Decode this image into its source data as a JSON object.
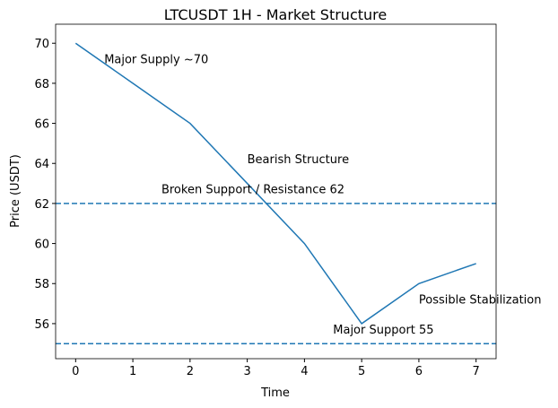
{
  "chart_data": {
    "type": "line",
    "title": "LTCUSDT 1H - Market Structure",
    "x_label": "Time",
    "y_label": "Price (USDT)",
    "x": [
      0,
      1,
      2,
      3,
      4,
      5,
      6,
      7
    ],
    "series": [
      {
        "color": "#1f77b4",
        "values": [
          70,
          68,
          66,
          63,
          60,
          56,
          58,
          59
        ]
      }
    ],
    "hlines": [
      {
        "value": 62,
        "color": "#1f77b4",
        "style": "dashed"
      },
      {
        "value": 55,
        "color": "#1f77b4",
        "style": "dashed"
      }
    ],
    "annotations": [
      {
        "text": "Major Supply ~70",
        "x": 0.5,
        "y": 69
      },
      {
        "text": "Bearish Structure",
        "x": 3,
        "y": 64
      },
      {
        "text": "Broken Support / Resistance 62",
        "x": 1.5,
        "y": 62.5
      },
      {
        "text": "Major Support 55",
        "x": 4.5,
        "y": 55.5
      },
      {
        "text": "Possible Stabilization",
        "x": 6,
        "y": 57
      }
    ],
    "xlim": [
      -0.35,
      7.35
    ],
    "ylim": [
      54.25,
      70.95
    ],
    "xticks": [
      0,
      1,
      2,
      3,
      4,
      5,
      6,
      7
    ],
    "yticks": [
      56,
      58,
      60,
      62,
      64,
      66,
      68,
      70
    ]
  }
}
